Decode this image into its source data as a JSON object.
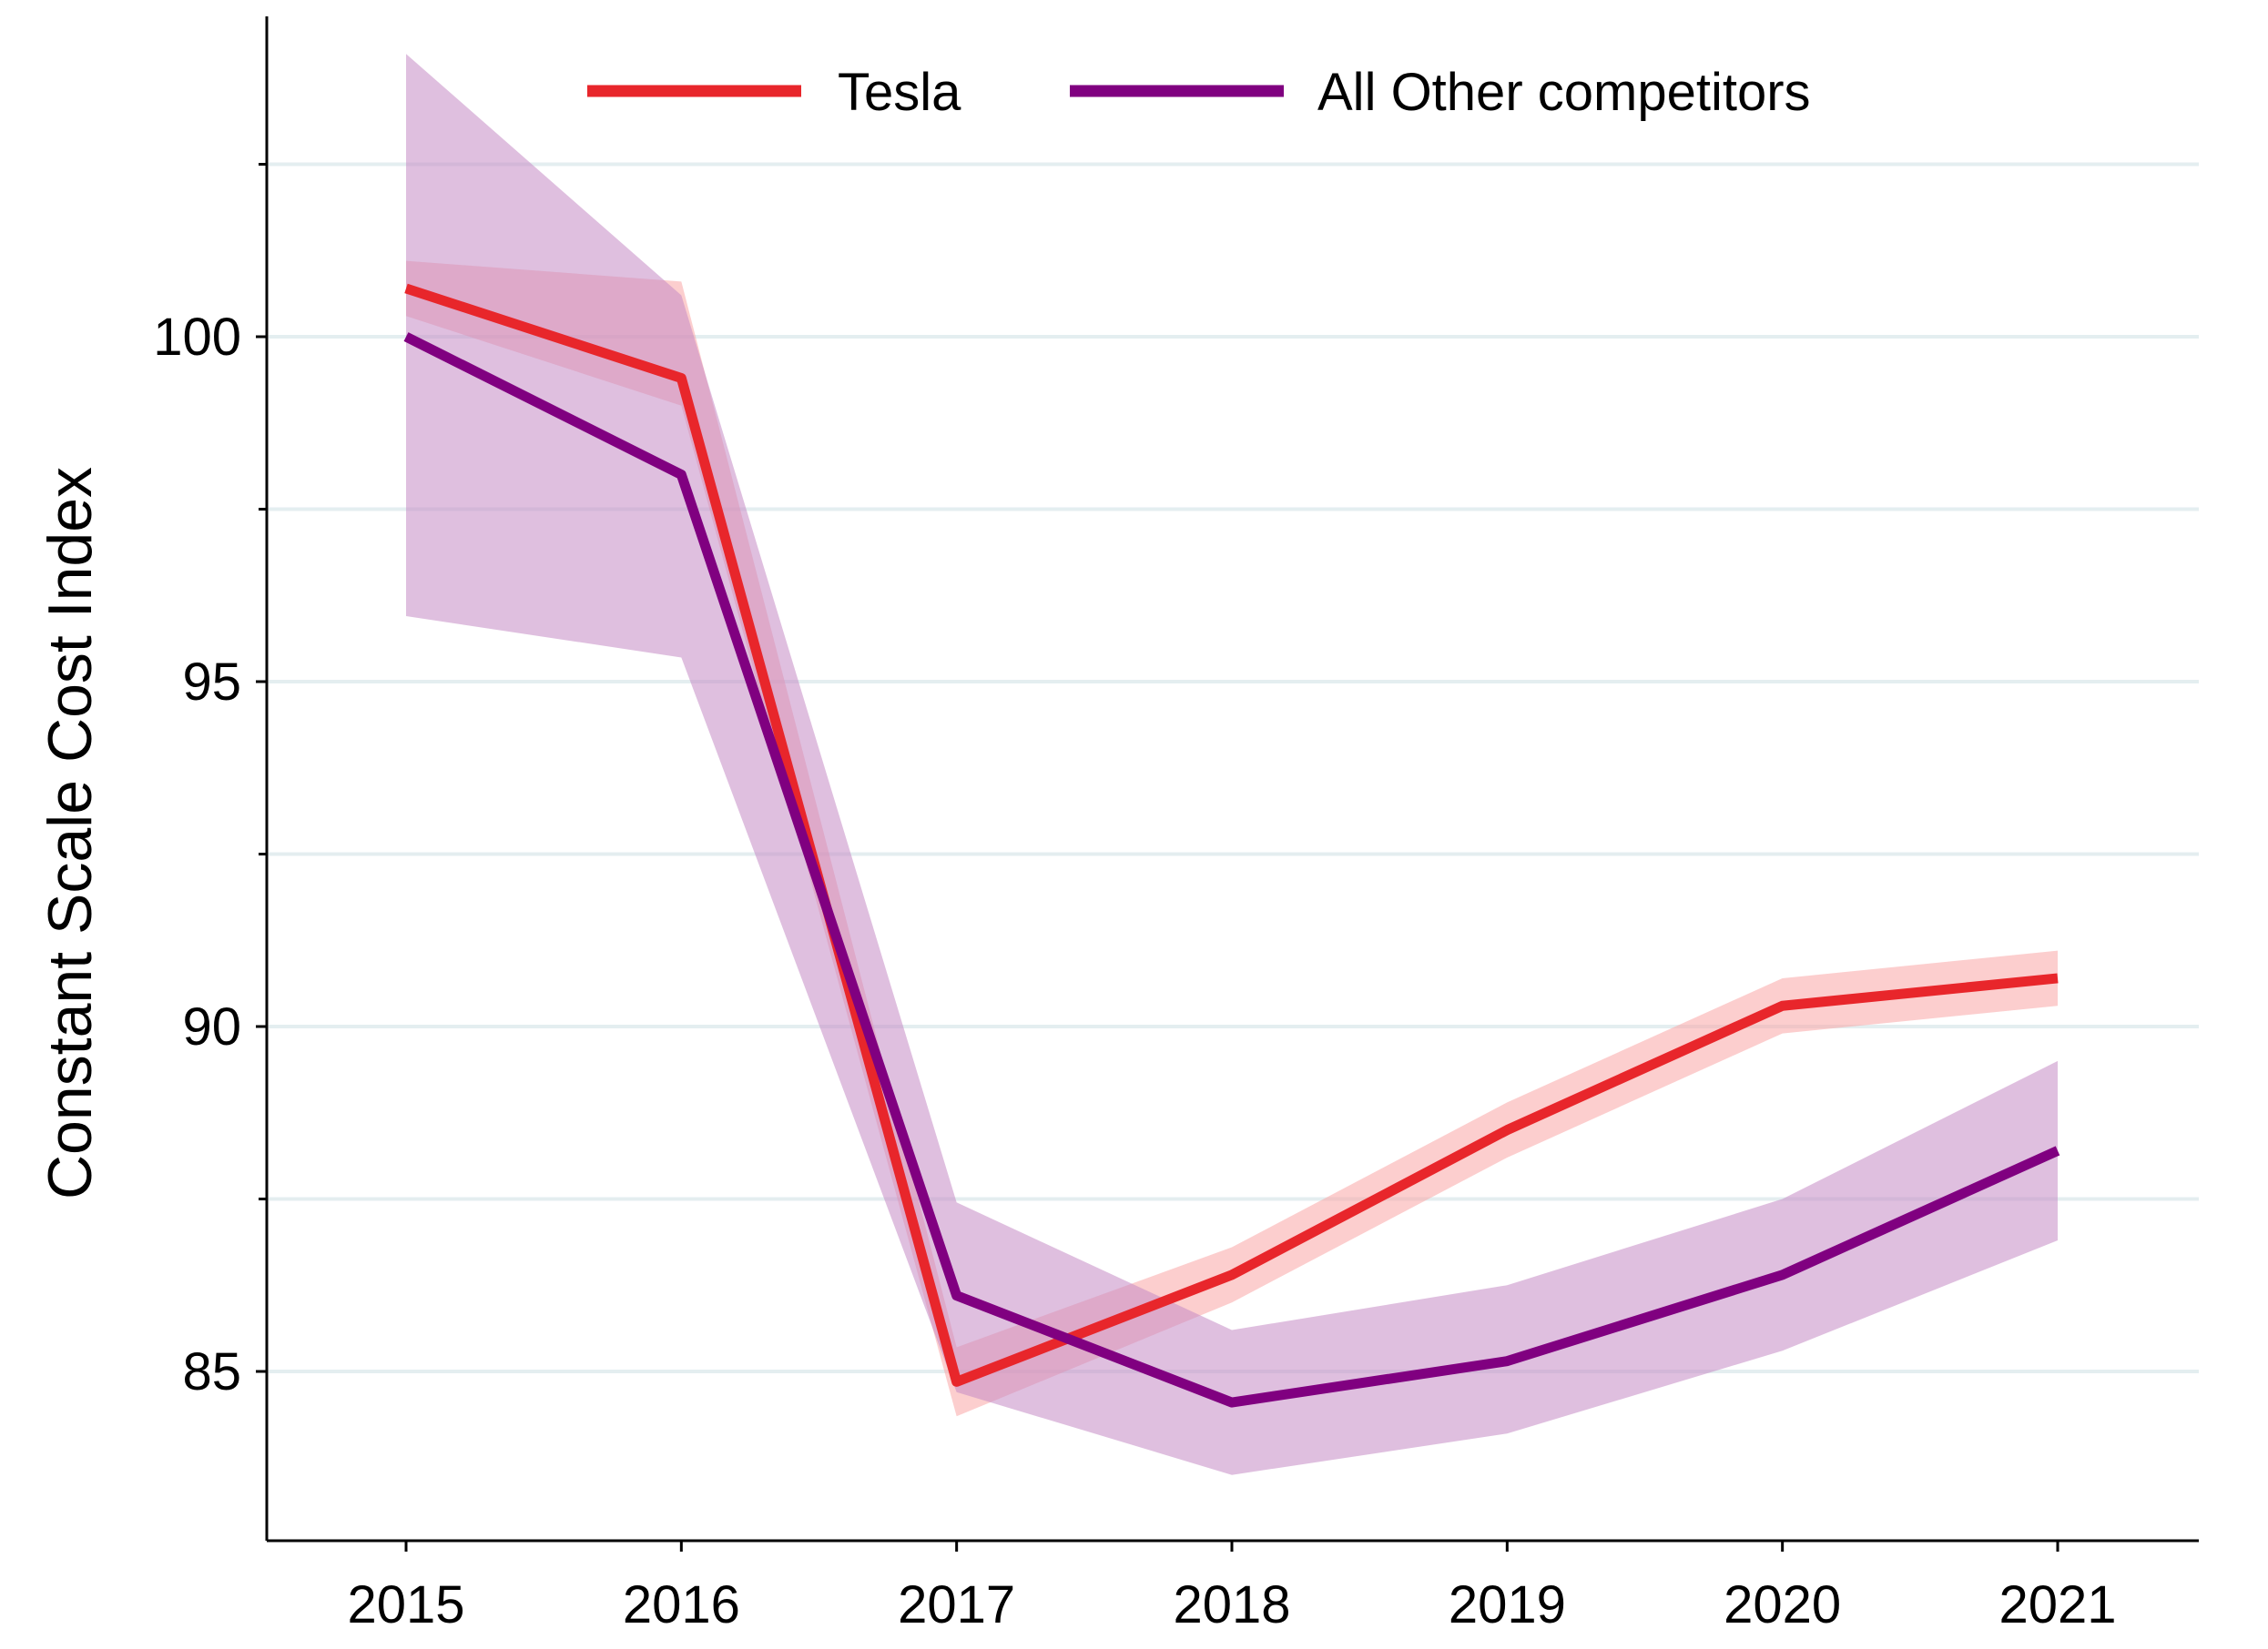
{
  "chart_data": {
    "type": "line",
    "title": "",
    "xlabel": "",
    "ylabel": "Constant Scale Cost Index",
    "x": [
      2015,
      2016,
      2017,
      2018,
      2019,
      2020,
      2021
    ],
    "x_tick_labels": [
      "2015",
      "2016",
      "2017",
      "2018",
      "2019",
      "2020",
      "2021"
    ],
    "y_tick_values": [
      85,
      90,
      95,
      100
    ],
    "y_tick_labels": [
      "85",
      "90",
      "95",
      "100"
    ],
    "y_minor_ticks": [
      87.5,
      92.5,
      97.5,
      102.5
    ],
    "xlim": [
      2014.5,
      2021.5
    ],
    "ylim": [
      82.5,
      104.5
    ],
    "grid": true,
    "legend_position": "top",
    "series": [
      {
        "name": "Tesla",
        "color": "#e8262b",
        "band_color": "#f9a5a5",
        "values": [
          100.7,
          99.4,
          84.85,
          86.4,
          88.5,
          90.3,
          90.7
        ],
        "lower": [
          100.3,
          99.0,
          84.35,
          86.0,
          88.1,
          89.9,
          90.3
        ],
        "upper": [
          101.1,
          100.8,
          85.35,
          86.8,
          88.9,
          90.7,
          91.1
        ]
      },
      {
        "name": "All Other competitors",
        "color": "#800080",
        "band_color": "#c58bc5",
        "values": [
          100.0,
          98.0,
          86.1,
          84.55,
          85.15,
          86.4,
          88.2
        ],
        "lower": [
          95.95,
          95.35,
          84.7,
          83.5,
          84.1,
          85.3,
          86.9
        ],
        "upper": [
          104.1,
          100.6,
          87.45,
          85.6,
          86.25,
          87.5,
          89.5
        ]
      }
    ]
  }
}
